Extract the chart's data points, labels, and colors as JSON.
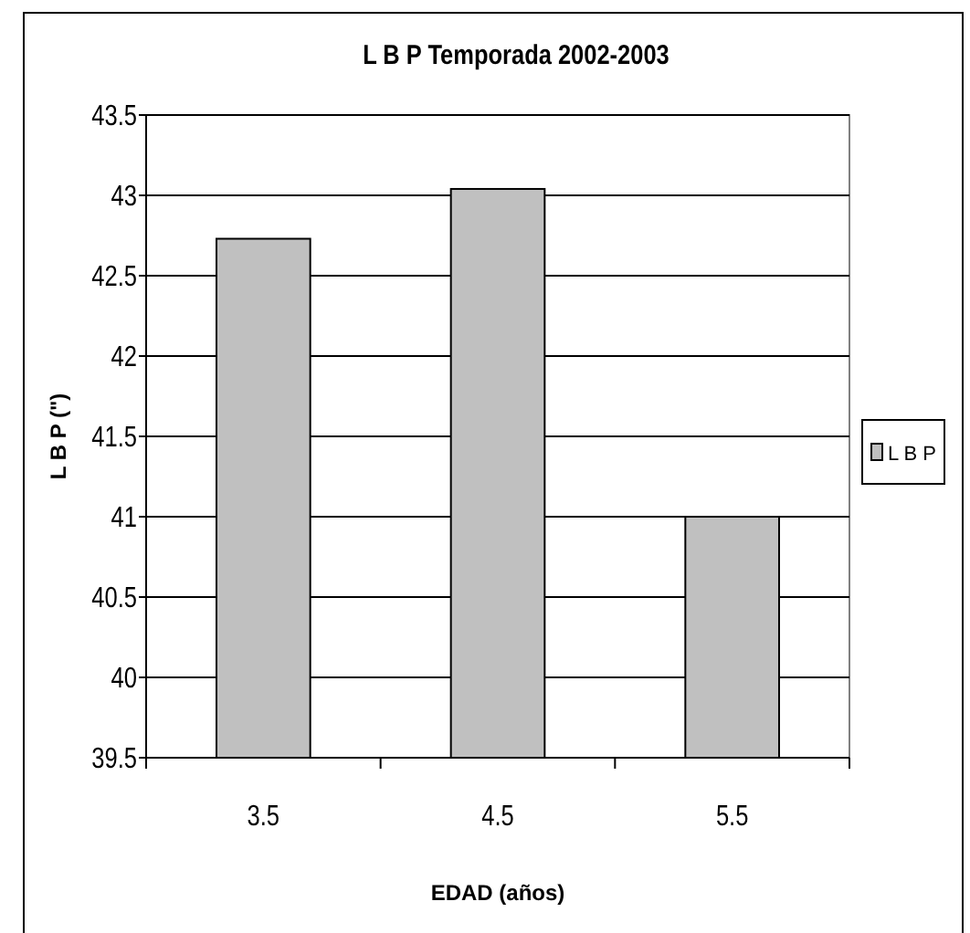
{
  "chart_data": {
    "type": "bar",
    "title": "L B P Temporada 2002-2003",
    "xlabel": "EDAD (años)",
    "ylabel": "L  B  P  (\")",
    "categories": [
      "3.5",
      "4.5",
      "5.5"
    ],
    "series": [
      {
        "name": "L B P",
        "color": "#c0c0c0",
        "values": [
          42.73,
          43.04,
          41.0
        ]
      }
    ],
    "ylim": [
      39.5,
      43.5
    ],
    "yticks": [
      39.5,
      40,
      40.5,
      41,
      41.5,
      42,
      42.5,
      43,
      43.5
    ],
    "grid": "y",
    "legend": "right"
  }
}
